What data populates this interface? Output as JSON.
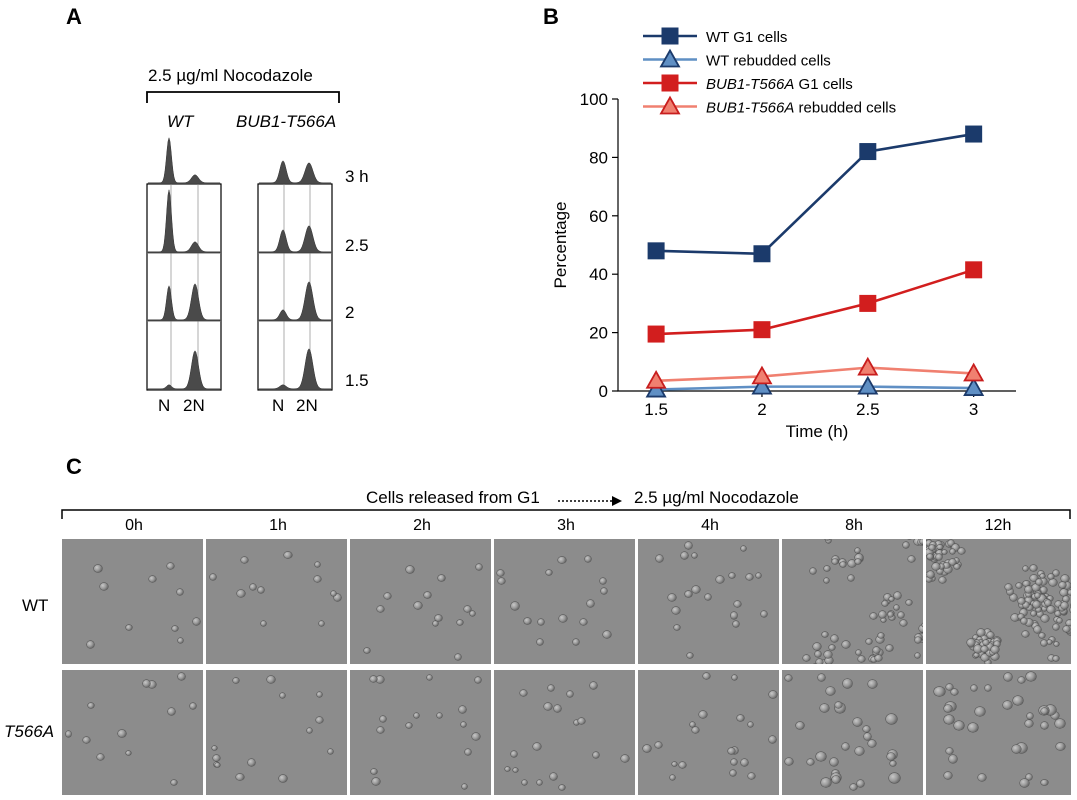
{
  "panel_a": {
    "label": "A",
    "bracket_label": "2.5 µg/ml Nocodazole",
    "col_wt": "WT",
    "col_mut": "BUB1-T566A",
    "time_labels": [
      "3 h",
      "2.5",
      "2",
      "1.5"
    ],
    "xaxis_n": "N",
    "xaxis_2n": "2N"
  },
  "panel_b": {
    "label": "B"
  },
  "chart_data": {
    "type": "line",
    "title": "",
    "xlabel": "Time (h)",
    "ylabel": "Percentage",
    "x": [
      1.5,
      2,
      2.5,
      3
    ],
    "xticks": [
      "1.5",
      "2",
      "2.5",
      "3"
    ],
    "yticks": [
      "0",
      "20",
      "40",
      "60",
      "80",
      "100"
    ],
    "ylim": [
      0,
      100
    ],
    "grid": false,
    "legend_position": "top",
    "series": [
      {
        "name": "WT G1 cells",
        "name_italic_part": "",
        "name_rest": "WT G1 cells",
        "marker": "square",
        "color": "#1b3a6b",
        "values": [
          48,
          47,
          82,
          88
        ]
      },
      {
        "name": "WT rebudded cells",
        "name_italic_part": "",
        "name_rest": "WT rebudded cells",
        "marker": "triangle",
        "color": "#5f8fc4",
        "values": [
          0.5,
          1.5,
          1.5,
          1
        ]
      },
      {
        "name": "BUB1-T566A G1 cells",
        "name_italic_part": "BUB1-T566A",
        "name_rest": " G1 cells",
        "marker": "square",
        "color": "#d21e1e",
        "values": [
          19.5,
          21,
          30,
          41.5
        ]
      },
      {
        "name": "BUB1-T566A rebudded cells",
        "name_italic_part": "BUB1-T566A",
        "name_rest": " rebudded cells",
        "marker": "triangle",
        "color": "#f08070",
        "values": [
          3.5,
          5,
          8,
          6
        ]
      }
    ]
  },
  "panel_c": {
    "label": "C",
    "header_left": "Cells released from G1",
    "header_right": "2.5 µg/ml Nocodazole",
    "timepoints": [
      "0h",
      "1h",
      "2h",
      "3h",
      "4h",
      "8h",
      "12h"
    ],
    "row_labels": [
      "WT",
      "T566A"
    ]
  }
}
